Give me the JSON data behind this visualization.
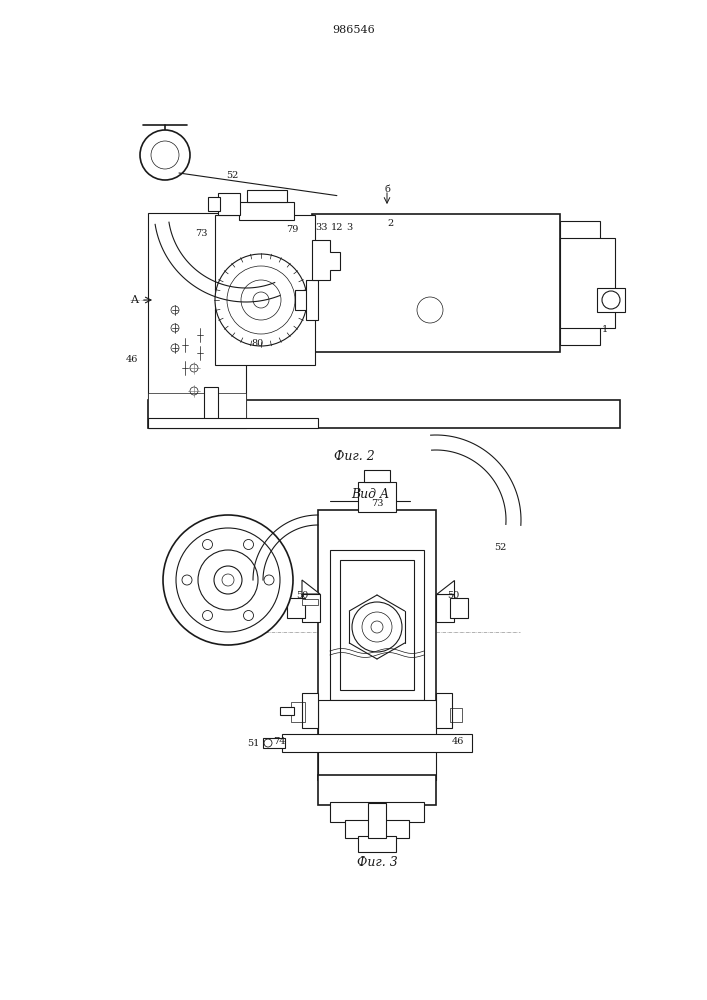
{
  "title": "986546",
  "fig2_caption": "Фиг. 2",
  "fig3_caption": "Фиг. 3",
  "vid_a_label": "Вид A",
  "background_color": "#ffffff",
  "line_color": "#1a1a1a",
  "lw": 0.8,
  "tlw": 0.5,
  "thw": 1.2
}
